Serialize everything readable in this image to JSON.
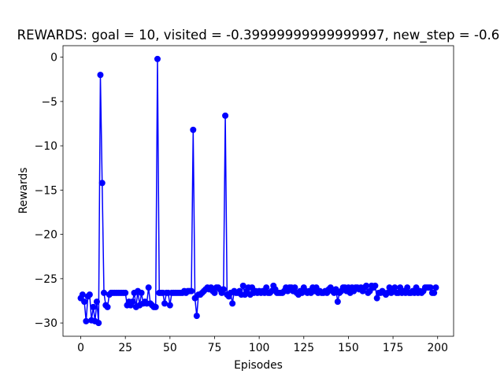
{
  "chart_data": {
    "type": "line",
    "title": "REWARDS: goal = 10, visited = -0.39999999999999997, new_step = -0.6",
    "x_label": "Episodes",
    "y_label": "Rewards",
    "x": [
      0,
      1,
      2,
      3,
      4,
      5,
      6,
      7,
      8,
      9,
      10,
      11,
      12,
      13,
      14,
      15,
      16,
      17,
      18,
      19,
      20,
      21,
      22,
      23,
      24,
      25,
      26,
      27,
      28,
      29,
      30,
      31,
      32,
      33,
      34,
      35,
      36,
      37,
      38,
      39,
      40,
      41,
      42,
      43,
      44,
      45,
      46,
      47,
      48,
      49,
      50,
      51,
      52,
      53,
      54,
      55,
      56,
      57,
      58,
      59,
      60,
      61,
      62,
      63,
      64,
      65,
      66,
      67,
      68,
      69,
      70,
      71,
      72,
      73,
      74,
      75,
      76,
      77,
      78,
      79,
      80,
      81,
      82,
      83,
      84,
      85,
      86,
      87,
      88,
      89,
      90,
      91,
      92,
      93,
      94,
      95,
      96,
      97,
      98,
      99,
      100,
      101,
      102,
      103,
      104,
      105,
      106,
      107,
      108,
      109,
      110,
      111,
      112,
      113,
      114,
      115,
      116,
      117,
      118,
      119,
      120,
      121,
      122,
      123,
      124,
      125,
      126,
      127,
      128,
      129,
      130,
      131,
      132,
      133,
      134,
      135,
      136,
      137,
      138,
      139,
      140,
      141,
      142,
      143,
      144,
      145,
      146,
      147,
      148,
      149,
      150,
      151,
      152,
      153,
      154,
      155,
      156,
      157,
      158,
      159,
      160,
      161,
      162,
      163,
      164,
      165,
      166,
      167,
      168,
      169,
      170,
      171,
      172,
      173,
      174,
      175,
      176,
      177,
      178,
      179,
      180,
      181,
      182,
      183,
      184,
      185,
      186,
      187,
      188,
      189,
      190,
      191,
      192,
      193,
      194,
      195,
      196,
      197,
      198,
      199
    ],
    "series": [
      {
        "color": "#0000ff",
        "values": [
          -27.2,
          -26.8,
          -27.6,
          -29.8,
          -27,
          -26.8,
          -29.7,
          -28.2,
          -29.8,
          -27.6,
          -30,
          -2,
          -14.2,
          -26.6,
          -28,
          -28.2,
          -26.8,
          -26.6,
          -26.6,
          -26.6,
          -26.6,
          -26.6,
          -26.6,
          -26.6,
          -26.6,
          -26.6,
          -28,
          -27.6,
          -28,
          -27.6,
          -26.6,
          -28.2,
          -26.4,
          -28,
          -26.6,
          -27.8,
          -27.6,
          -27.8,
          -26,
          -27.8,
          -28,
          -28.2,
          -28.2,
          -0.2,
          -26.6,
          -26.6,
          -26.6,
          -27.8,
          -26.6,
          -26.6,
          -28,
          -26.6,
          -26.6,
          -26.6,
          -26.6,
          -26.6,
          -26.6,
          -26.6,
          -26.4,
          -26.6,
          -26.4,
          -26.4,
          -26.4,
          -8.2,
          -27.2,
          -29.2,
          -26.8,
          -26.8,
          -26.6,
          -26.4,
          -26.2,
          -26,
          -26.2,
          -26,
          -26.4,
          -26.6,
          -26,
          -26,
          -26.2,
          -26.6,
          -26.2,
          -6.6,
          -26.8,
          -27,
          -26.6,
          -27.8,
          -26.4,
          -26.6,
          -26.6,
          -26.4,
          -26.8,
          -25.8,
          -26.8,
          -26.4,
          -26,
          -26.8,
          -26,
          -26.6,
          -26.4,
          -26.6,
          -26.4,
          -26.6,
          -26.4,
          -26.6,
          -26,
          -26.6,
          -26.6,
          -26.4,
          -25.8,
          -26.2,
          -26.6,
          -26.6,
          -26.6,
          -26.6,
          -26.4,
          -26,
          -26.4,
          -26,
          -26,
          -26.4,
          -26,
          -26.6,
          -26.8,
          -26.4,
          -26.6,
          -26,
          -26.4,
          -26.6,
          -26.4,
          -26.6,
          -26,
          -26.4,
          -26,
          -26.6,
          -26.4,
          -26.6,
          -26.6,
          -26.4,
          -26.6,
          -26.2,
          -26,
          -26.4,
          -26.6,
          -26.2,
          -27.6,
          -26.6,
          -26.4,
          -26,
          -26,
          -26.4,
          -26,
          -26.6,
          -26,
          -26.4,
          -26,
          -26,
          -26.2,
          -26,
          -26.4,
          -26,
          -25.8,
          -26.6,
          -26.4,
          -25.8,
          -26,
          -25.8,
          -27.2,
          -26.6,
          -26.6,
          -26.4,
          -26.6,
          -26.8,
          -26.6,
          -26,
          -26.6,
          -26.4,
          -26,
          -26.6,
          -26.6,
          -26,
          -26.6,
          -26.4,
          -26.6,
          -26,
          -26.6,
          -26.6,
          -26.4,
          -26.6,
          -26,
          -26.6,
          -26.4,
          -26.6,
          -26.4,
          -26,
          -26,
          -26,
          -26,
          -26.6,
          -26.6,
          -26
        ]
      }
    ],
    "xlim": [
      -9.95,
      208.95
    ],
    "ylim": [
      -31.5,
      1.3
    ],
    "xticks": [
      0,
      25,
      50,
      75,
      100,
      125,
      150,
      175,
      200
    ],
    "yticks": [
      {
        "value": -30,
        "label": "−30"
      },
      {
        "value": -25,
        "label": "−25"
      },
      {
        "value": -20,
        "label": "−20"
      },
      {
        "value": -15,
        "label": "−15"
      },
      {
        "value": -10,
        "label": "−10"
      },
      {
        "value": -5,
        "label": "−5"
      },
      0
    ],
    "grid": false
  }
}
